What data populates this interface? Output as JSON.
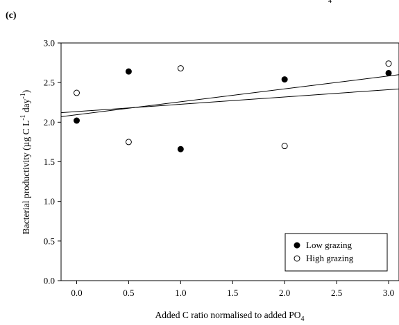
{
  "panel_label": "(c)",
  "top_clipped_text": "4",
  "chart_data": {
    "type": "scatter",
    "xlabel_main": "Added C ratio normalised to added PO",
    "xlabel_sub": "4",
    "ylabel_parts": [
      "Bacterial productivity (µg C L",
      "-1",
      " day",
      "-1",
      ")"
    ],
    "xlim": [
      -0.15,
      3.1
    ],
    "ylim": [
      0.0,
      3.0
    ],
    "xticks": [
      0.0,
      0.5,
      1.0,
      1.5,
      2.0,
      2.5,
      3.0
    ],
    "xtick_labels": [
      "0.0",
      "0.5",
      "1.0",
      "1.5",
      "2.0",
      "2.5",
      "3.0"
    ],
    "yticks": [
      0.0,
      0.5,
      1.0,
      1.5,
      2.0,
      2.5,
      3.0
    ],
    "ytick_labels": [
      "0.0",
      "0.5",
      "1.0",
      "1.5",
      "2.0",
      "2.5",
      "3.0"
    ],
    "grid": false,
    "legend_position": "bottom-right",
    "series": [
      {
        "name": "Low grazing",
        "marker": "filled-circle",
        "color": "#000000",
        "x": [
          0.0,
          0.5,
          1.0,
          2.0,
          3.0
        ],
        "y": [
          2.02,
          2.64,
          1.66,
          2.54,
          2.62
        ],
        "fit_line": [
          2.07,
          2.6
        ]
      },
      {
        "name": "High grazing",
        "marker": "open-circle",
        "color": "#000000",
        "x": [
          0.0,
          0.5,
          1.0,
          2.0,
          3.0
        ],
        "y": [
          2.37,
          1.75,
          2.68,
          1.7,
          2.74
        ],
        "fit_line": [
          2.12,
          2.42
        ]
      }
    ]
  }
}
